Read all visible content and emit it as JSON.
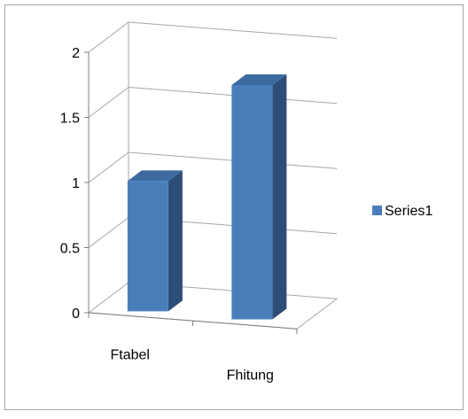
{
  "chart_data": {
    "type": "bar",
    "categories": [
      "Ftabel",
      "Fhitung"
    ],
    "series": [
      {
        "name": "Series1",
        "values": [
          1.0,
          1.8
        ]
      }
    ],
    "ylim": [
      0,
      2
    ],
    "y_ticks": [
      "0",
      "0.5",
      "1",
      "1.5",
      "2"
    ],
    "grid": true,
    "legend_position": "right",
    "style": "3d-column",
    "colors": {
      "bar_front": "#4a7ebb",
      "bar_side": "#2c4d75",
      "bar_top": "#3c6aa1",
      "gridline": "#a6a6a6",
      "axis": "#7f7f7f",
      "border": "#a6a6a6"
    }
  }
}
